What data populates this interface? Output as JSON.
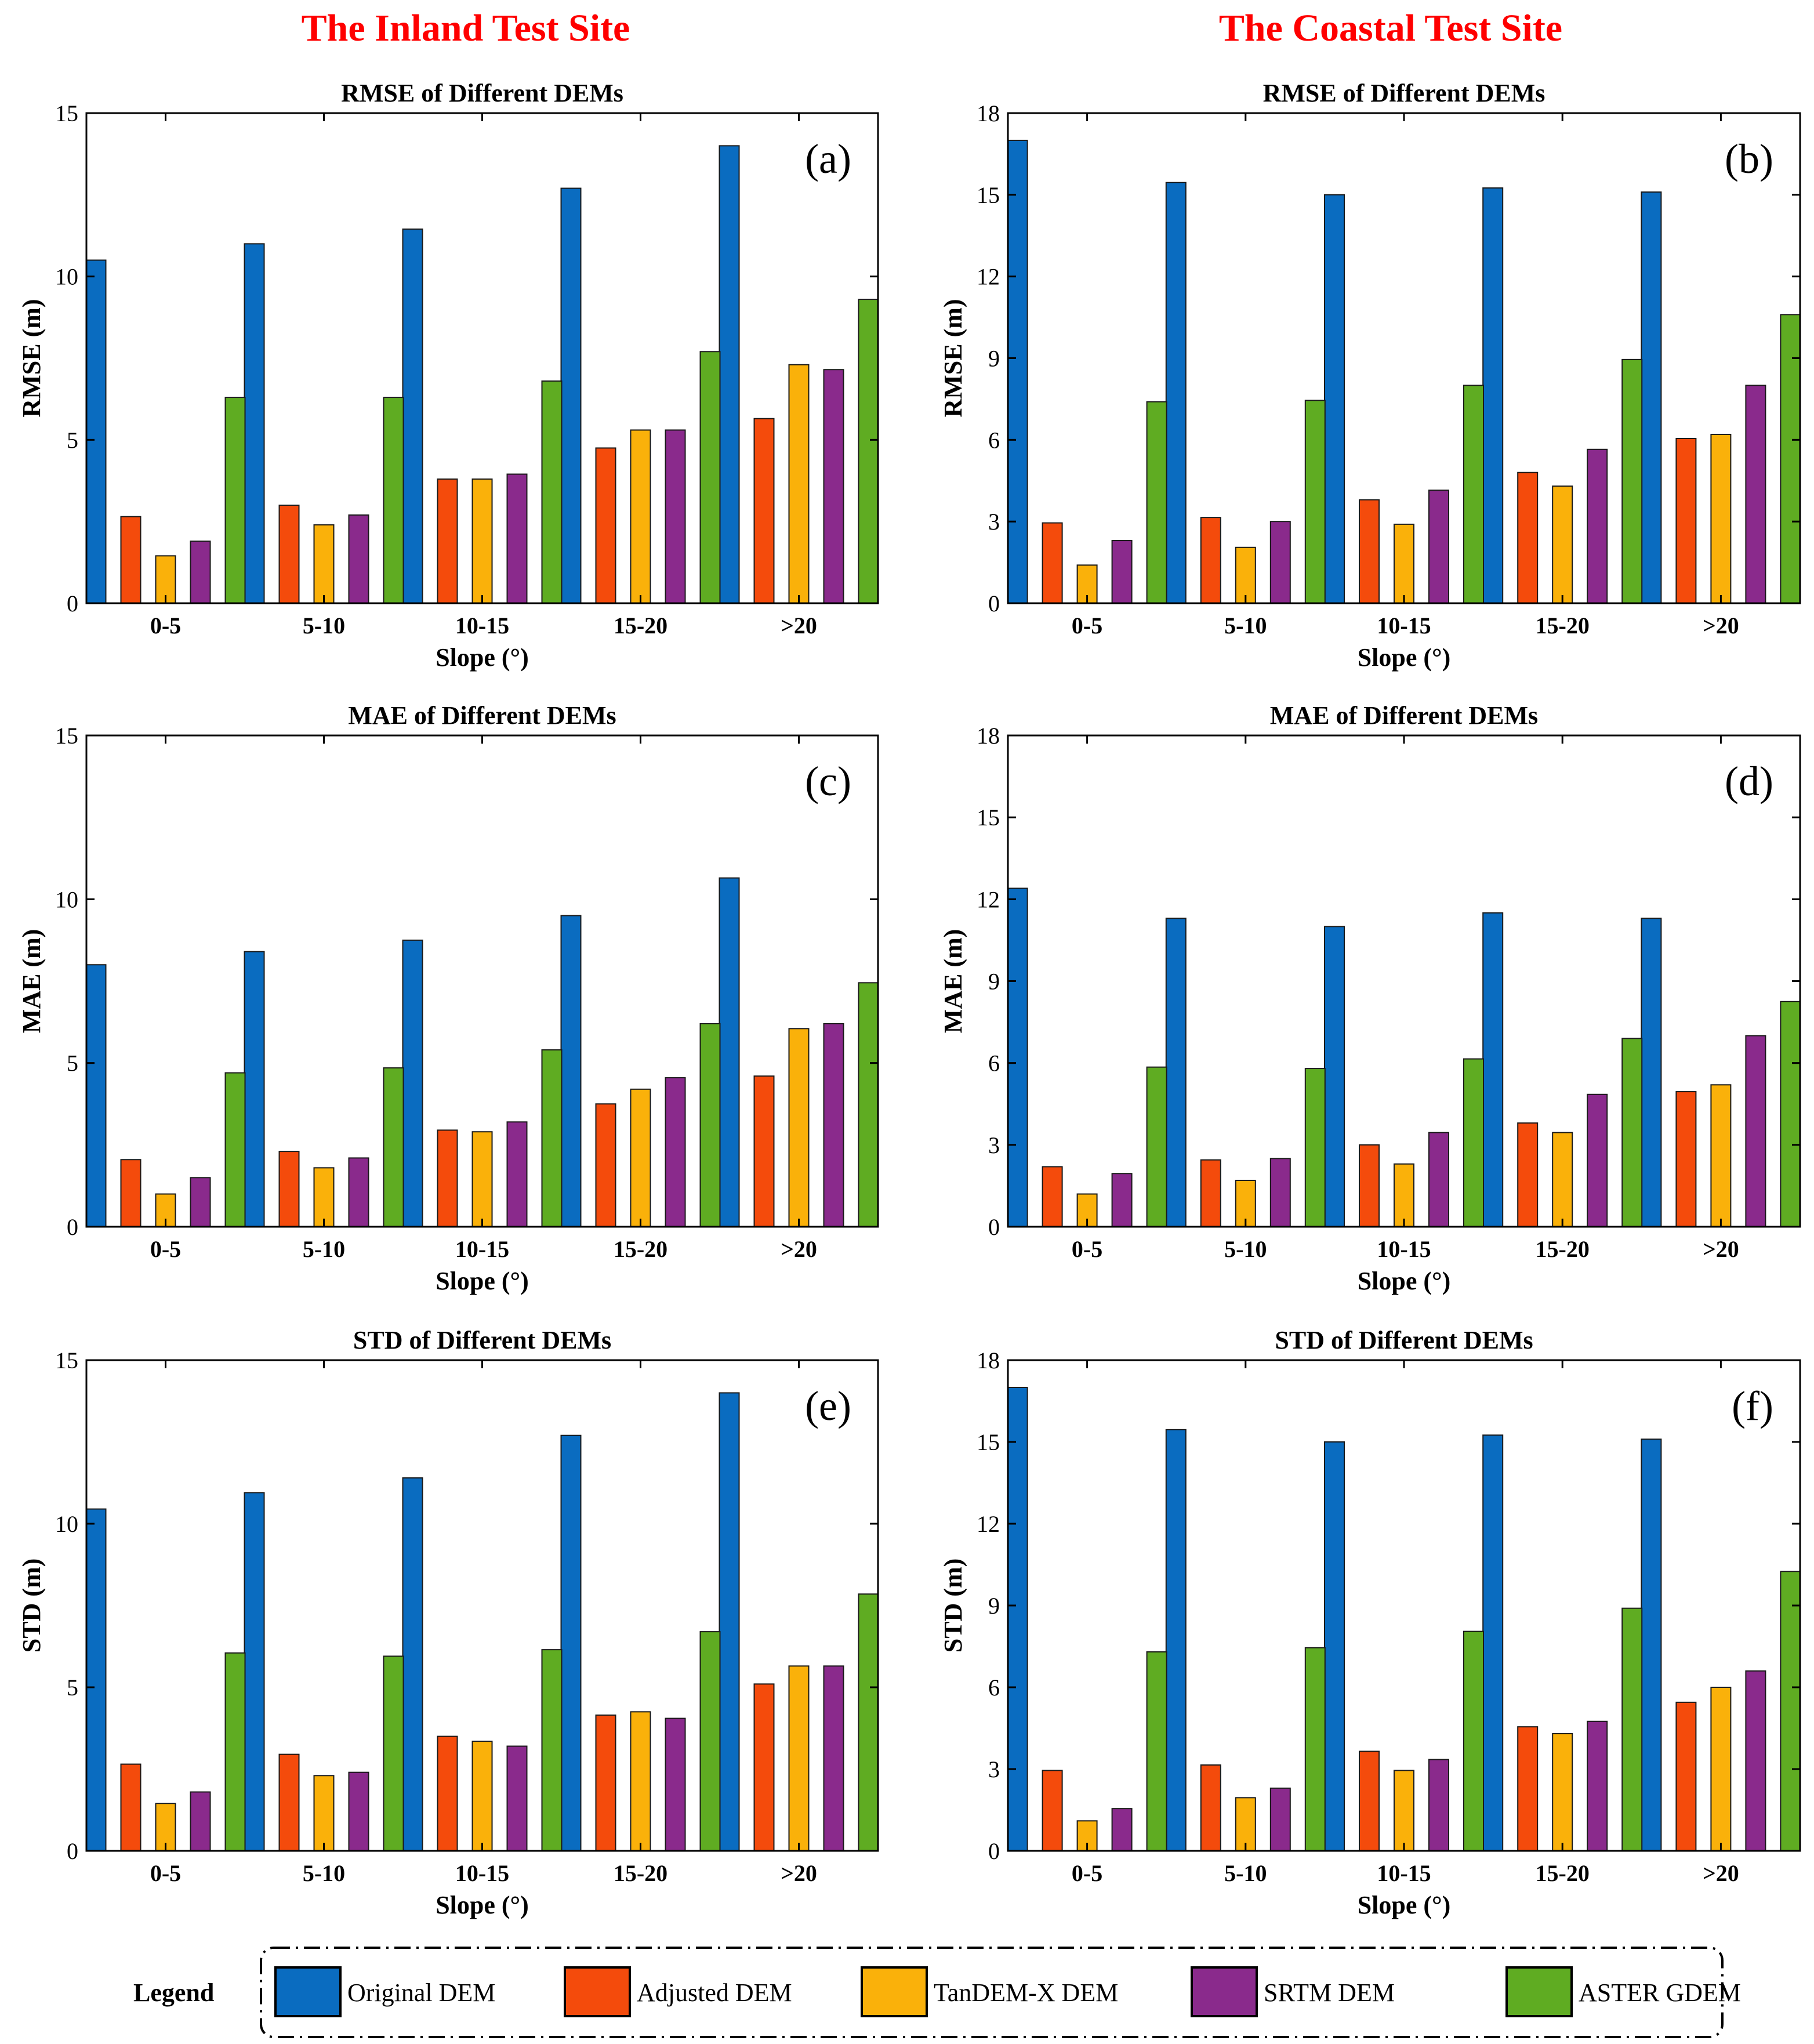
{
  "site_titles": {
    "inland": "The Inland Test Site",
    "coastal": "The Coastal Test Site"
  },
  "colors": {
    "Original DEM": "#0a6cc0",
    "Adjusted DEM": "#f44b0c",
    "TanDEM-X DEM": "#fab10a",
    "SRTM DEM": "#8a2a8c",
    "ASTER GDEM": "#5fac22"
  },
  "legend": {
    "title": "Legend",
    "items": [
      "Original DEM",
      "Adjusted DEM",
      "TanDEM-X DEM",
      "SRTM DEM",
      "ASTER GDEM"
    ]
  },
  "chart_data": [
    {
      "id": "a",
      "type": "bar",
      "tag": "(a)",
      "site": "inland",
      "title": "RMSE of Different DEMs",
      "xlabel": "Slope (°)",
      "ylabel": "RMSE (m)",
      "ylim": [
        0,
        15
      ],
      "yticks": [
        0,
        5,
        10,
        15
      ],
      "categories": [
        "0-5",
        "5-10",
        "10-15",
        "15-20",
        ">20"
      ],
      "series": [
        {
          "name": "Original DEM",
          "values": [
            10.5,
            11.0,
            11.45,
            12.7,
            14.0
          ]
        },
        {
          "name": "Adjusted DEM",
          "values": [
            2.65,
            3.0,
            3.8,
            4.75,
            5.65
          ]
        },
        {
          "name": "TanDEM-X DEM",
          "values": [
            1.45,
            2.4,
            3.8,
            5.3,
            7.3
          ]
        },
        {
          "name": "SRTM DEM",
          "values": [
            1.9,
            2.7,
            3.95,
            5.3,
            7.15
          ]
        },
        {
          "name": "ASTER GDEM",
          "values": [
            6.3,
            6.3,
            6.8,
            7.7,
            9.3
          ]
        }
      ]
    },
    {
      "id": "b",
      "type": "bar",
      "tag": "(b)",
      "site": "coastal",
      "title": "RMSE of Different DEMs",
      "xlabel": "Slope (°)",
      "ylabel": "RMSE (m)",
      "ylim": [
        0,
        18
      ],
      "yticks": [
        0,
        3,
        6,
        9,
        12,
        15,
        18
      ],
      "categories": [
        "0-5",
        "5-10",
        "10-15",
        "15-20",
        ">20"
      ],
      "series": [
        {
          "name": "Original DEM",
          "values": [
            17.0,
            15.45,
            15.0,
            15.25,
            15.1
          ]
        },
        {
          "name": "Adjusted DEM",
          "values": [
            2.95,
            3.15,
            3.8,
            4.8,
            6.05
          ]
        },
        {
          "name": "TanDEM-X DEM",
          "values": [
            1.4,
            2.05,
            2.9,
            4.3,
            6.2
          ]
        },
        {
          "name": "SRTM DEM",
          "values": [
            2.3,
            3.0,
            4.15,
            5.65,
            8.0
          ]
        },
        {
          "name": "ASTER GDEM",
          "values": [
            7.4,
            7.45,
            8.0,
            8.95,
            10.6
          ]
        }
      ]
    },
    {
      "id": "c",
      "type": "bar",
      "tag": "(c)",
      "site": "inland",
      "title": "MAE of Different DEMs",
      "xlabel": "Slope (°)",
      "ylabel": "MAE (m)",
      "ylim": [
        0,
        15
      ],
      "yticks": [
        0,
        5,
        10,
        15
      ],
      "categories": [
        "0-5",
        "5-10",
        "10-15",
        "15-20",
        ">20"
      ],
      "series": [
        {
          "name": "Original DEM",
          "values": [
            8.0,
            8.4,
            8.75,
            9.5,
            10.65
          ]
        },
        {
          "name": "Adjusted DEM",
          "values": [
            2.05,
            2.3,
            2.95,
            3.75,
            4.6
          ]
        },
        {
          "name": "TanDEM-X DEM",
          "values": [
            1.0,
            1.8,
            2.9,
            4.2,
            6.05
          ]
        },
        {
          "name": "SRTM DEM",
          "values": [
            1.5,
            2.1,
            3.2,
            4.55,
            6.2
          ]
        },
        {
          "name": "ASTER GDEM",
          "values": [
            4.7,
            4.85,
            5.4,
            6.2,
            7.45
          ]
        }
      ]
    },
    {
      "id": "d",
      "type": "bar",
      "tag": "(d)",
      "site": "coastal",
      "title": "MAE of Different DEMs",
      "xlabel": "Slope (°)",
      "ylabel": "MAE (m)",
      "ylim": [
        0,
        18
      ],
      "yticks": [
        0,
        3,
        6,
        9,
        12,
        15,
        18
      ],
      "categories": [
        "0-5",
        "5-10",
        "10-15",
        "15-20",
        ">20"
      ],
      "series": [
        {
          "name": "Original DEM",
          "values": [
            12.4,
            11.3,
            11.0,
            11.5,
            11.3
          ]
        },
        {
          "name": "Adjusted DEM",
          "values": [
            2.2,
            2.45,
            3.0,
            3.8,
            4.95
          ]
        },
        {
          "name": "TanDEM-X DEM",
          "values": [
            1.2,
            1.7,
            2.3,
            3.45,
            5.2
          ]
        },
        {
          "name": "SRTM DEM",
          "values": [
            1.95,
            2.5,
            3.45,
            4.85,
            7.0
          ]
        },
        {
          "name": "ASTER GDEM",
          "values": [
            5.85,
            5.8,
            6.15,
            6.9,
            8.25
          ]
        }
      ]
    },
    {
      "id": "e",
      "type": "bar",
      "tag": "(e)",
      "site": "inland",
      "title": "STD of Different DEMs",
      "xlabel": "Slope (°)",
      "ylabel": "STD (m)",
      "ylim": [
        0,
        15
      ],
      "yticks": [
        0,
        5,
        10,
        15
      ],
      "categories": [
        "0-5",
        "5-10",
        "10-15",
        "15-20",
        ">20"
      ],
      "series": [
        {
          "name": "Original DEM",
          "values": [
            10.45,
            10.95,
            11.4,
            12.7,
            14.0
          ]
        },
        {
          "name": "Adjusted DEM",
          "values": [
            2.65,
            2.95,
            3.5,
            4.15,
            5.1
          ]
        },
        {
          "name": "TanDEM-X DEM",
          "values": [
            1.45,
            2.3,
            3.35,
            4.25,
            5.65
          ]
        },
        {
          "name": "SRTM DEM",
          "values": [
            1.8,
            2.4,
            3.2,
            4.05,
            5.65
          ]
        },
        {
          "name": "ASTER GDEM",
          "values": [
            6.05,
            5.95,
            6.15,
            6.7,
            7.85
          ]
        }
      ]
    },
    {
      "id": "f",
      "type": "bar",
      "tag": "(f)",
      "site": "coastal",
      "title": "STD of Different DEMs",
      "xlabel": "Slope (°)",
      "ylabel": "STD (m)",
      "ylim": [
        0,
        18
      ],
      "yticks": [
        0,
        3,
        6,
        9,
        12,
        15,
        18
      ],
      "categories": [
        "0-5",
        "5-10",
        "10-15",
        "15-20",
        ">20"
      ],
      "series": [
        {
          "name": "Original DEM",
          "values": [
            17.0,
            15.45,
            15.0,
            15.25,
            15.1
          ]
        },
        {
          "name": "Adjusted DEM",
          "values": [
            2.95,
            3.15,
            3.65,
            4.55,
            5.45
          ]
        },
        {
          "name": "TanDEM-X DEM",
          "values": [
            1.1,
            1.95,
            2.95,
            4.3,
            6.0
          ]
        },
        {
          "name": "SRTM DEM",
          "values": [
            1.55,
            2.3,
            3.35,
            4.75,
            6.6
          ]
        },
        {
          "name": "ASTER GDEM",
          "values": [
            7.3,
            7.45,
            8.05,
            8.9,
            10.25
          ]
        }
      ]
    }
  ]
}
